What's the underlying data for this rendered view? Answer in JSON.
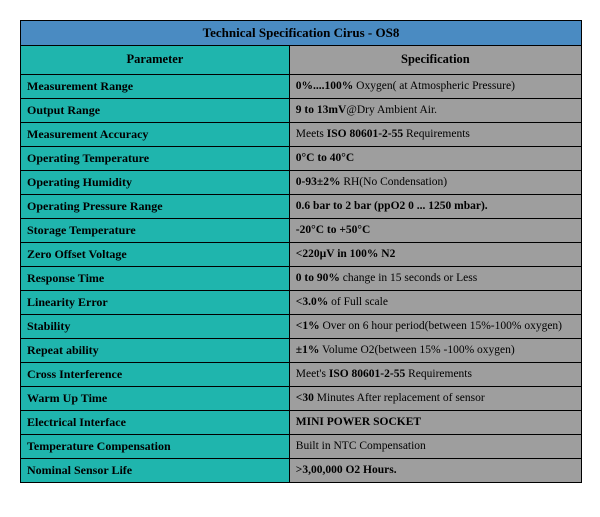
{
  "title": "Technical Specification Cirus - OS8",
  "header": {
    "param": "Parameter",
    "spec": "Specification"
  },
  "rows": [
    {
      "param": "Measurement Range",
      "spec_bold_pre": "0%....100% ",
      "spec_rest": "Oxygen( at Atmospheric Pressure)"
    },
    {
      "param": "Output Range",
      "spec_bold_pre": "9 to 13mV",
      "spec_rest": "@Dry Ambient Air."
    },
    {
      "param": "Measurement Accuracy",
      "spec_pre": "Meets ",
      "spec_bold_mid": "ISO 80601-2-55",
      "spec_rest": " Requirements"
    },
    {
      "param": "Operating Temperature",
      "spec_bold_pre": "0°C to 40°C",
      "spec_rest": ""
    },
    {
      "param": "Operating Humidity",
      "spec_bold_pre": "0-93±2%",
      "spec_rest": " RH(No Condensation)"
    },
    {
      "param": "Operating  Pressure Range",
      "spec_bold_pre": "0.6 bar to 2 bar (ppO2 0 ... 1250 mbar).",
      "spec_rest": ""
    },
    {
      "param": "Storage Temperature",
      "spec_bold_pre": "-20°C to +50°C",
      "spec_rest": ""
    },
    {
      "param": "Zero Offset Voltage",
      "spec_bold_pre": "<220µV in 100% N2",
      "spec_rest": ""
    },
    {
      "param": "Response Time",
      "spec_bold_pre": "0 to 90%",
      "spec_rest": " change in 15 seconds or Less"
    },
    {
      "param": "Linearity  Error",
      "spec_bold_pre": "<3.0%",
      "spec_rest": " of Full scale"
    },
    {
      "param": "Stability",
      "spec_bold_pre": "<1%",
      "spec_rest": " Over on 6 hour period(between 15%-100% oxygen)"
    },
    {
      "param": "Repeat ability",
      "spec_bold_pre": "±1%",
      "spec_rest": " Volume O2(between 15% -100% oxygen)"
    },
    {
      "param": "Cross Interference",
      "spec_pre": "Meet's ",
      "spec_bold_mid": "ISO 80601-2-55",
      "spec_rest": " Requirements"
    },
    {
      "param": "Warm Up Time",
      "spec_bold_pre": "<30 ",
      "spec_rest": "Minutes After replacement of sensor"
    },
    {
      "param": "Electrical  Interface",
      "spec_bold_pre": "MINI POWER SOCKET",
      "spec_rest": ""
    },
    {
      "param": "Temperature Compensation",
      "spec_rest": "Built in NTC Compensation"
    },
    {
      "param": "Nominal  Sensor Life",
      "spec_bold_pre": ">3,00,000  O2 Hours.",
      "spec_rest": ""
    }
  ],
  "colors": {
    "title_bg": "#4a8bc2",
    "param_bg": "#1fb5ad",
    "spec_bg": "#9e9e9e",
    "border": "#000000"
  }
}
